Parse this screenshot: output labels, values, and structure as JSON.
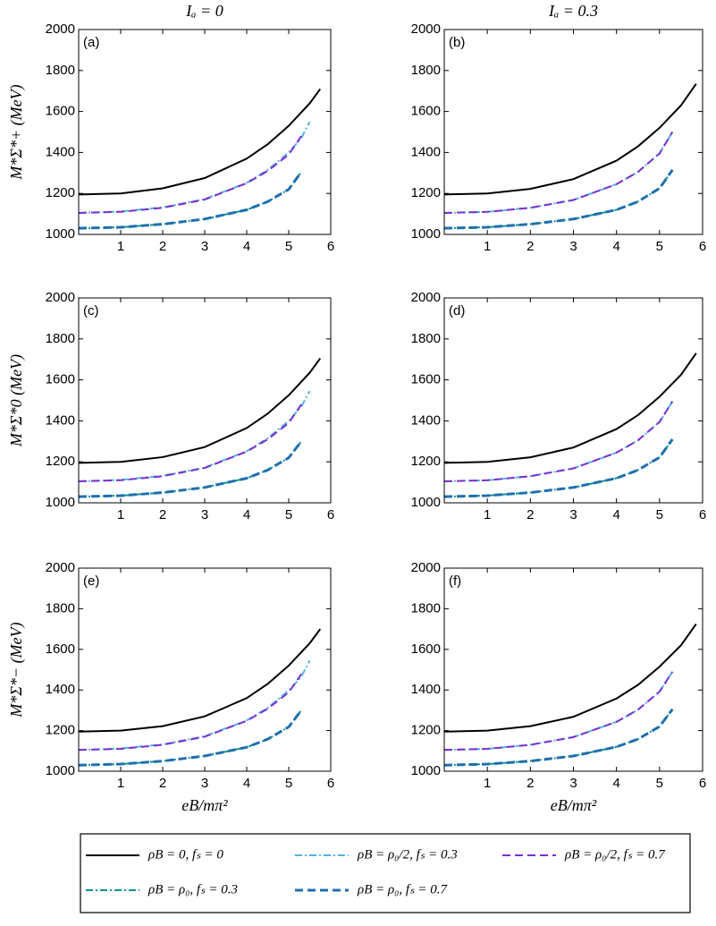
{
  "chart_data": [
    {
      "type": "line",
      "title": "(a)",
      "column_title": "Iₐ = 0",
      "ylabel": "M*Σ*+ (MeV)",
      "xlim": [
        0,
        6
      ],
      "xticks": [
        1,
        2,
        3,
        4,
        5,
        6
      ],
      "ylim": [
        1000,
        2000
      ],
      "yticks": [
        1000,
        1200,
        1400,
        1600,
        1800,
        2000
      ],
      "series": [
        {
          "name": "ρB = 0, fₛ = 0",
          "color": "#000000",
          "style": "solid",
          "x": [
            0,
            1,
            2,
            3,
            4,
            4.5,
            5,
            5.5,
            5.75
          ],
          "values": [
            1195,
            1200,
            1225,
            1275,
            1370,
            1440,
            1530,
            1640,
            1710
          ]
        },
        {
          "name": "ρB = ρ₀/2, fₛ = 0.3",
          "color": "#4fb3e0",
          "style": "dashdot",
          "x": [
            0,
            1,
            2,
            3,
            4,
            4.5,
            5,
            5.3,
            5.5
          ],
          "values": [
            1105,
            1112,
            1132,
            1172,
            1252,
            1315,
            1400,
            1470,
            1550
          ]
        },
        {
          "name": "ρB = ρ₀/2, fₛ = 0.7",
          "color": "#7b2fd0",
          "style": "dashed",
          "x": [
            0,
            1,
            2,
            3,
            4,
            4.5,
            5,
            5.3
          ],
          "values": [
            1105,
            1110,
            1130,
            1170,
            1250,
            1310,
            1390,
            1480
          ]
        },
        {
          "name": "ρB = ρ₀, fₛ = 0.3",
          "color": "#109090",
          "style": "dashdot",
          "x": [
            0,
            1,
            2,
            3,
            4,
            4.5,
            5,
            5.3
          ],
          "values": [
            1030,
            1035,
            1050,
            1075,
            1120,
            1160,
            1220,
            1305
          ]
        },
        {
          "name": "ρB = ρ₀, fₛ = 0.7",
          "color": "#1f6fb0",
          "style": "dashed",
          "x": [
            0,
            1,
            2,
            3,
            4,
            4.5,
            5,
            5.3
          ],
          "values": [
            1030,
            1035,
            1050,
            1075,
            1120,
            1160,
            1220,
            1305
          ]
        }
      ]
    },
    {
      "type": "line",
      "title": "(b)",
      "column_title": "Iₐ = 0.3",
      "xlim": [
        0,
        6
      ],
      "xticks": [
        1,
        2,
        3,
        4,
        5,
        6
      ],
      "ylim": [
        1000,
        2000
      ],
      "yticks": [
        1000,
        1200,
        1400,
        1600,
        1800,
        2000
      ],
      "series": [
        {
          "name": "ρB = 0, fₛ = 0",
          "color": "#000000",
          "style": "solid",
          "x": [
            0,
            1,
            2,
            3,
            4,
            4.5,
            5,
            5.5,
            5.85
          ],
          "values": [
            1195,
            1200,
            1222,
            1270,
            1360,
            1430,
            1520,
            1630,
            1735
          ]
        },
        {
          "name": "ρB = ρ₀/2, fₛ = 0.3",
          "color": "#4fb3e0",
          "style": "dashdot",
          "x": [
            0,
            1,
            2,
            3,
            4,
            4.5,
            5,
            5.3
          ],
          "values": [
            1105,
            1110,
            1130,
            1168,
            1245,
            1305,
            1395,
            1500
          ]
        },
        {
          "name": "ρB = ρ₀/2, fₛ = 0.7",
          "color": "#7b2fd0",
          "style": "dashed",
          "x": [
            0,
            1,
            2,
            3,
            4,
            4.5,
            5,
            5.3
          ],
          "values": [
            1105,
            1110,
            1130,
            1168,
            1245,
            1305,
            1395,
            1500
          ]
        },
        {
          "name": "ρB = ρ₀, fₛ = 0.3",
          "color": "#109090",
          "style": "dashdot",
          "x": [
            0,
            1,
            2,
            3,
            4,
            4.5,
            5,
            5.3
          ],
          "values": [
            1030,
            1035,
            1050,
            1075,
            1120,
            1160,
            1225,
            1315
          ]
        },
        {
          "name": "ρB = ρ₀, fₛ = 0.7",
          "color": "#1f6fb0",
          "style": "dashed",
          "x": [
            0,
            1,
            2,
            3,
            4,
            4.5,
            5,
            5.3
          ],
          "values": [
            1030,
            1035,
            1050,
            1075,
            1120,
            1160,
            1225,
            1315
          ]
        }
      ]
    },
    {
      "type": "line",
      "title": "(c)",
      "ylabel": "M*Σ*0 (MeV)",
      "xlim": [
        0,
        6
      ],
      "xticks": [
        1,
        2,
        3,
        4,
        5,
        6
      ],
      "ylim": [
        1000,
        2000
      ],
      "yticks": [
        1000,
        1200,
        1400,
        1600,
        1800,
        2000
      ],
      "series": [
        {
          "name": "ρB = 0, fₛ = 0",
          "color": "#000000",
          "style": "solid",
          "x": [
            0,
            1,
            2,
            3,
            4,
            4.5,
            5,
            5.5,
            5.75
          ],
          "values": [
            1195,
            1200,
            1223,
            1272,
            1365,
            1435,
            1525,
            1635,
            1705
          ]
        },
        {
          "name": "ρB = ρ₀/2, fₛ = 0.3",
          "color": "#4fb3e0",
          "style": "dashdot",
          "x": [
            0,
            1,
            2,
            3,
            4,
            4.5,
            5,
            5.3,
            5.5
          ],
          "values": [
            1105,
            1112,
            1132,
            1172,
            1252,
            1315,
            1400,
            1470,
            1545
          ]
        },
        {
          "name": "ρB = ρ₀/2, fₛ = 0.7",
          "color": "#7b2fd0",
          "style": "dashed",
          "x": [
            0,
            1,
            2,
            3,
            4,
            4.5,
            5,
            5.3
          ],
          "values": [
            1105,
            1110,
            1130,
            1170,
            1250,
            1310,
            1390,
            1480
          ]
        },
        {
          "name": "ρB = ρ₀, fₛ = 0.3",
          "color": "#109090",
          "style": "dashdot",
          "x": [
            0,
            1,
            2,
            3,
            4,
            4.5,
            5,
            5.3
          ],
          "values": [
            1030,
            1035,
            1050,
            1075,
            1120,
            1160,
            1220,
            1300
          ]
        },
        {
          "name": "ρB = ρ₀, fₛ = 0.7",
          "color": "#1f6fb0",
          "style": "dashed",
          "x": [
            0,
            1,
            2,
            3,
            4,
            4.5,
            5,
            5.3
          ],
          "values": [
            1030,
            1035,
            1050,
            1075,
            1120,
            1160,
            1220,
            1300
          ]
        }
      ]
    },
    {
      "type": "line",
      "title": "(d)",
      "xlim": [
        0,
        6
      ],
      "xticks": [
        1,
        2,
        3,
        4,
        5,
        6
      ],
      "ylim": [
        1000,
        2000
      ],
      "yticks": [
        1000,
        1200,
        1400,
        1600,
        1800,
        2000
      ],
      "series": [
        {
          "name": "ρB = 0, fₛ = 0",
          "color": "#000000",
          "style": "solid",
          "x": [
            0,
            1,
            2,
            3,
            4,
            4.5,
            5,
            5.5,
            5.85
          ],
          "values": [
            1195,
            1200,
            1222,
            1270,
            1360,
            1428,
            1518,
            1625,
            1730
          ]
        },
        {
          "name": "ρB = ρ₀/2, fₛ = 0.3",
          "color": "#4fb3e0",
          "style": "dashdot",
          "x": [
            0,
            1,
            2,
            3,
            4,
            4.5,
            5,
            5.3
          ],
          "values": [
            1105,
            1110,
            1130,
            1168,
            1245,
            1305,
            1395,
            1495
          ]
        },
        {
          "name": "ρB = ρ₀/2, fₛ = 0.7",
          "color": "#7b2fd0",
          "style": "dashed",
          "x": [
            0,
            1,
            2,
            3,
            4,
            4.5,
            5,
            5.3
          ],
          "values": [
            1105,
            1110,
            1130,
            1168,
            1245,
            1305,
            1395,
            1495
          ]
        },
        {
          "name": "ρB = ρ₀, fₛ = 0.3",
          "color": "#109090",
          "style": "dashdot",
          "x": [
            0,
            1,
            2,
            3,
            4,
            4.5,
            5,
            5.3
          ],
          "values": [
            1030,
            1035,
            1050,
            1075,
            1120,
            1160,
            1222,
            1310
          ]
        },
        {
          "name": "ρB = ρ₀, fₛ = 0.7",
          "color": "#1f6fb0",
          "style": "dashed",
          "x": [
            0,
            1,
            2,
            3,
            4,
            4.5,
            5,
            5.3
          ],
          "values": [
            1030,
            1035,
            1050,
            1075,
            1120,
            1160,
            1222,
            1310
          ]
        }
      ]
    },
    {
      "type": "line",
      "title": "(e)",
      "ylabel": "M*Σ*− (MeV)",
      "xlabel": "eB/mπ²",
      "xlim": [
        0,
        6
      ],
      "xticks": [
        1,
        2,
        3,
        4,
        5,
        6
      ],
      "ylim": [
        1000,
        2000
      ],
      "yticks": [
        1000,
        1200,
        1400,
        1600,
        1800,
        2000
      ],
      "series": [
        {
          "name": "ρB = 0, fₛ = 0",
          "color": "#000000",
          "style": "solid",
          "x": [
            0,
            1,
            2,
            3,
            4,
            4.5,
            5,
            5.5,
            5.75
          ],
          "values": [
            1195,
            1200,
            1222,
            1270,
            1360,
            1430,
            1520,
            1630,
            1700
          ]
        },
        {
          "name": "ρB = ρ₀/2, fₛ = 0.3",
          "color": "#4fb3e0",
          "style": "dashdot",
          "x": [
            0,
            1,
            2,
            3,
            4,
            4.5,
            5,
            5.3,
            5.5
          ],
          "values": [
            1105,
            1112,
            1132,
            1172,
            1250,
            1312,
            1398,
            1465,
            1545
          ]
        },
        {
          "name": "ρB = ρ₀/2, fₛ = 0.7",
          "color": "#7b2fd0",
          "style": "dashed",
          "x": [
            0,
            1,
            2,
            3,
            4,
            4.5,
            5,
            5.3
          ],
          "values": [
            1105,
            1110,
            1130,
            1170,
            1248,
            1308,
            1388,
            1478
          ]
        },
        {
          "name": "ρB = ρ₀, fₛ = 0.3",
          "color": "#109090",
          "style": "dashdot",
          "x": [
            0,
            1,
            2,
            3,
            4,
            4.5,
            5,
            5.3
          ],
          "values": [
            1030,
            1035,
            1050,
            1075,
            1118,
            1158,
            1218,
            1300
          ]
        },
        {
          "name": "ρB = ρ₀, fₛ = 0.7",
          "color": "#1f6fb0",
          "style": "dashed",
          "x": [
            0,
            1,
            2,
            3,
            4,
            4.5,
            5,
            5.3
          ],
          "values": [
            1030,
            1035,
            1050,
            1075,
            1118,
            1158,
            1218,
            1300
          ]
        }
      ]
    },
    {
      "type": "line",
      "title": "(f)",
      "xlabel": "eB/mπ²",
      "xlim": [
        0,
        6
      ],
      "xticks": [
        1,
        2,
        3,
        4,
        5,
        6
      ],
      "ylim": [
        1000,
        2000
      ],
      "yticks": [
        1000,
        1200,
        1400,
        1600,
        1800,
        2000
      ],
      "series": [
        {
          "name": "ρB = 0, fₛ = 0",
          "color": "#000000",
          "style": "solid",
          "x": [
            0,
            1,
            2,
            3,
            4,
            4.5,
            5,
            5.5,
            5.85
          ],
          "values": [
            1195,
            1200,
            1222,
            1268,
            1358,
            1425,
            1515,
            1620,
            1725
          ]
        },
        {
          "name": "ρB = ρ₀/2, fₛ = 0.3",
          "color": "#4fb3e0",
          "style": "dashdot",
          "x": [
            0,
            1,
            2,
            3,
            4,
            4.5,
            5,
            5.3
          ],
          "values": [
            1105,
            1110,
            1130,
            1168,
            1243,
            1303,
            1392,
            1490
          ]
        },
        {
          "name": "ρB = ρ₀/2, fₛ = 0.7",
          "color": "#7b2fd0",
          "style": "dashed",
          "x": [
            0,
            1,
            2,
            3,
            4,
            4.5,
            5,
            5.3
          ],
          "values": [
            1105,
            1110,
            1130,
            1168,
            1243,
            1303,
            1392,
            1490
          ]
        },
        {
          "name": "ρB = ρ₀, fₛ = 0.3",
          "color": "#109090",
          "style": "dashdot",
          "x": [
            0,
            1,
            2,
            3,
            4,
            4.5,
            5,
            5.3
          ],
          "values": [
            1030,
            1035,
            1050,
            1075,
            1120,
            1158,
            1220,
            1305
          ]
        },
        {
          "name": "ρB = ρ₀, fₛ = 0.7",
          "color": "#1f6fb0",
          "style": "dashed",
          "x": [
            0,
            1,
            2,
            3,
            4,
            4.5,
            5,
            5.3
          ],
          "values": [
            1030,
            1035,
            1050,
            1075,
            1120,
            1158,
            1220,
            1305
          ]
        }
      ]
    }
  ]
}
